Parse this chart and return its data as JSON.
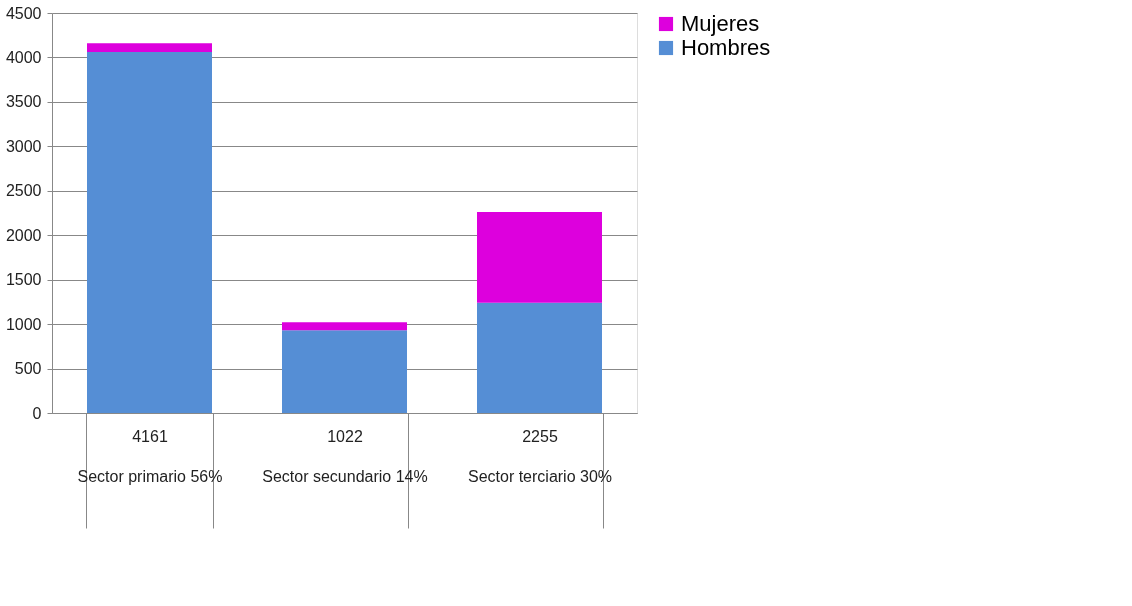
{
  "chart_data": {
    "type": "bar",
    "stacked": true,
    "categories": [
      "4161\nSector primario 56%",
      "1022\nSector secundario 14%",
      "2255\nSector terciario 30%"
    ],
    "series": [
      {
        "name": "Hombres",
        "color": "#558ed5",
        "values": [
          4060,
          930,
          1240
        ]
      },
      {
        "name": "Mujeres",
        "color": "#dd00dd",
        "values": [
          100,
          90,
          1020
        ]
      }
    ],
    "ylim": [
      0,
      4500
    ],
    "yticks": [
      0,
      500,
      1000,
      1500,
      2000,
      2500,
      3000,
      3500,
      4000,
      4500
    ],
    "grid": "y",
    "legend": "right"
  }
}
